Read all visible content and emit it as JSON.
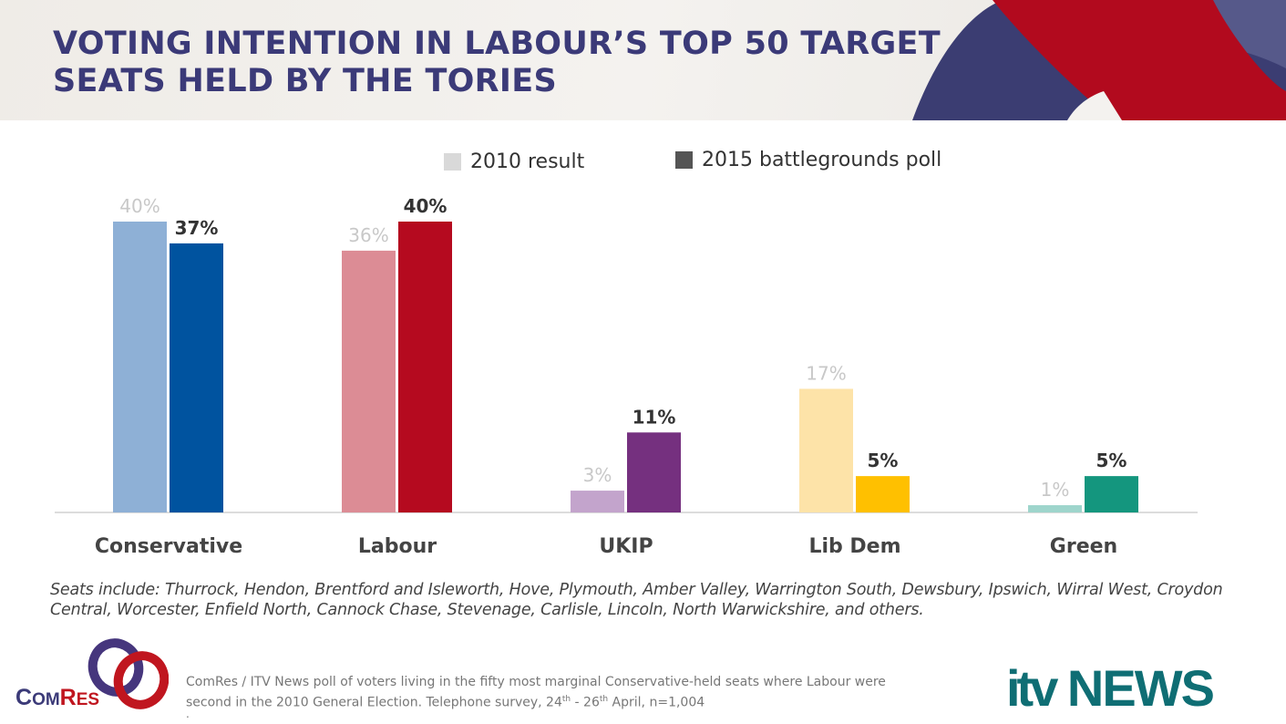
{
  "title_line1": "VOTING INTENTION IN LABOUR’S TOP 50 TARGET",
  "title_line2": "SEATS HELD BY THE TORIES",
  "chart_data": {
    "type": "bar",
    "title": "Voting intention in Labour's top 50 target seats held by the Tories",
    "categories": [
      "Conservative",
      "Labour",
      "UKIP",
      "Lib Dem",
      "Green"
    ],
    "series": [
      {
        "name": "2010 result",
        "values": [
          40,
          36,
          3,
          17,
          1
        ],
        "colors": [
          "#8eb0d6",
          "#dc8c95",
          "#c3a4cc",
          "#fde3a8",
          "#9ed5cc"
        ],
        "legend_color": "#d9d9d9"
      },
      {
        "name": "2015 battlegrounds poll",
        "values": [
          37,
          40,
          11,
          5,
          5
        ],
        "colors": [
          "#00539f",
          "#b50a1f",
          "#75307f",
          "#ffc000",
          "#14967e"
        ],
        "legend_color": "#555555"
      }
    ],
    "labels": [
      [
        "40%",
        "36%",
        "3%",
        "17%",
        "1%"
      ],
      [
        "37%",
        "40%",
        "11%",
        "5%",
        "5%"
      ]
    ],
    "ylim": [
      0,
      40
    ],
    "grid": false,
    "legend_position": "top"
  },
  "note": "Seats include: Thurrock, Hendon, Brentford and Isleworth, Hove, Plymouth, Amber Valley, Warrington South, Dewsbury, Ipswich, Wirral West, Croydon Central, Worcester, Enfield North, Cannock Chase, Stevenage, Carlisle, Lincoln, North Warwickshire, and others.",
  "source_line1": "ComRes / ITV News poll of voters living in the fifty most marginal Conservative-held seats where Labour were",
  "source_line2a": "second in the 2010 General Election. Telephone survey, 24",
  "source_sup1": "th",
  "source_line2b": " - 26",
  "source_sup2": "th",
  "source_line2c": " April, n=1,004",
  "source_dot": ".",
  "comres_logo": "ComRes",
  "itv_logo_a": "itv",
  "itv_logo_b": "NEWS"
}
